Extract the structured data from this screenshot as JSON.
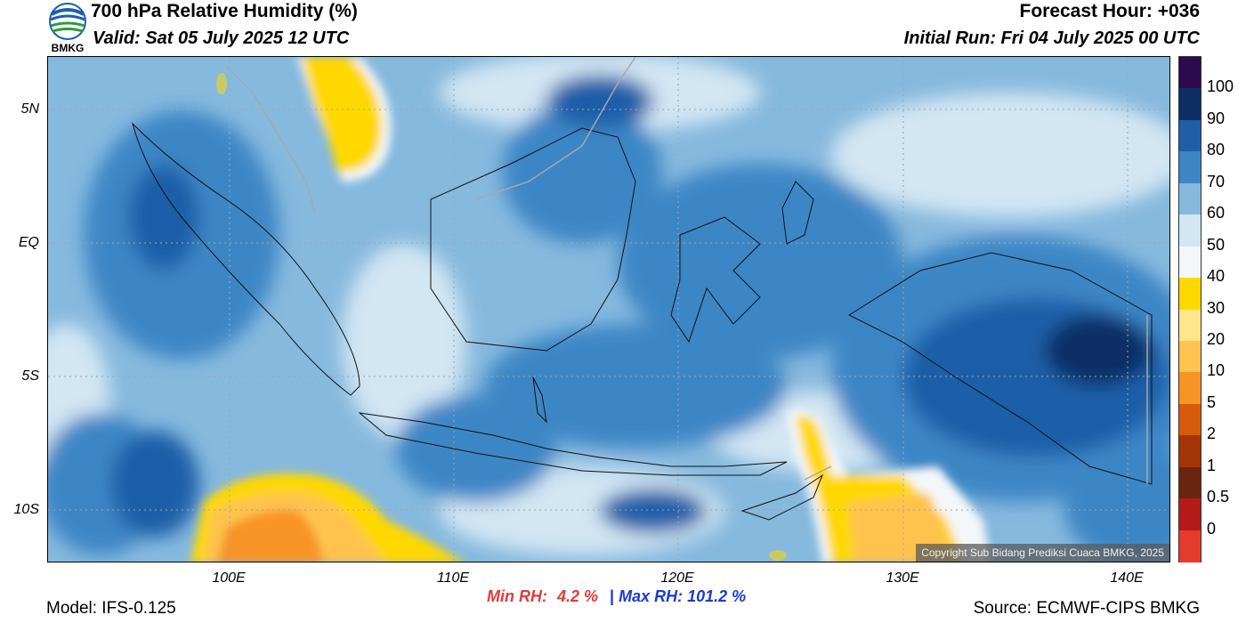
{
  "header": {
    "title": "700 hPa Relative Humidity (%)",
    "valid": "Valid: Sat 05 July 2025 12 UTC",
    "forecast_hour": "Forecast Hour: +036",
    "initial_run": "Initial Run: Fri 04 July 2025 00 UTC",
    "logo_text": "BMKG"
  },
  "map": {
    "lat_labels": [
      "5N",
      "EQ",
      "5S",
      "10S"
    ],
    "lon_labels": [
      "100E",
      "110E",
      "120E",
      "130E",
      "140E"
    ],
    "copyright": "Copyright Sub Bidang Prediksi Cuaca BMKG, 2025"
  },
  "colorbar": {
    "labels": [
      "100",
      "90",
      "80",
      "70",
      "60",
      "50",
      "40",
      "30",
      "20",
      "10",
      "5",
      "2",
      "1",
      "0.5",
      "0"
    ],
    "colors": [
      "#2d0a4e",
      "#0d2f66",
      "#1f5fa8",
      "#3d86c6",
      "#86b9de",
      "#d2e6f3",
      "#f4f7fa",
      "#ffd800",
      "#ffe58c",
      "#ffc34e",
      "#f89425",
      "#d65b0a",
      "#a33506",
      "#6a2410",
      "#b51a1a",
      "#e53b2c"
    ]
  },
  "stats": {
    "min_label": "Min RH:",
    "min_value": "4.2 %",
    "separator": "|",
    "max_label": "Max RH:",
    "max_value": "101.2 %"
  },
  "footer": {
    "model": "Model: IFS-0.125",
    "source": "Source: ECMWF-CIPS BMKG"
  }
}
